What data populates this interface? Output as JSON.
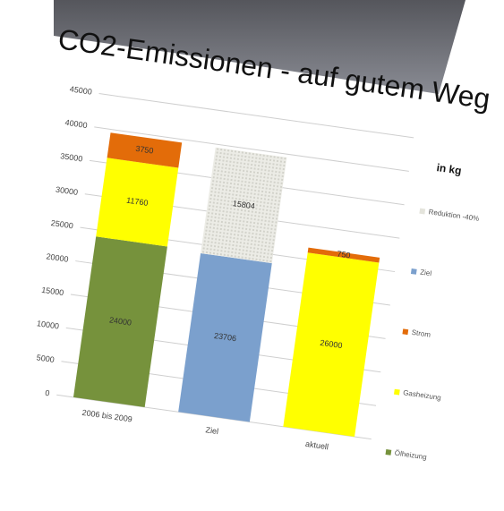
{
  "chart_data": {
    "type": "stacked_bar",
    "title": "CO2-Emissionen - auf gutem Weg",
    "subtitle": "in kg",
    "categories": [
      "2006 bis 2009",
      "Ziel",
      "aktuell"
    ],
    "series": [
      {
        "name": "Ölheizung",
        "color": "#76923c",
        "values": [
          24000,
          null,
          null
        ]
      },
      {
        "name": "Gasheizung",
        "color": "#ffff00",
        "values": [
          11760,
          null,
          26000
        ]
      },
      {
        "name": "Strom",
        "color": "#e36c09",
        "values": [
          3750,
          null,
          750
        ]
      },
      {
        "name": "Ziel",
        "color": "#7ba0cd",
        "values": [
          null,
          23706,
          null
        ]
      },
      {
        "name": "Reduktion -40%",
        "color": "#e4e4dc",
        "values": [
          null,
          15804,
          null
        ]
      }
    ],
    "ylim": [
      0,
      45000
    ],
    "yticks": [
      0,
      5000,
      10000,
      15000,
      20000,
      25000,
      30000,
      35000,
      40000,
      45000
    ],
    "grid": true
  }
}
